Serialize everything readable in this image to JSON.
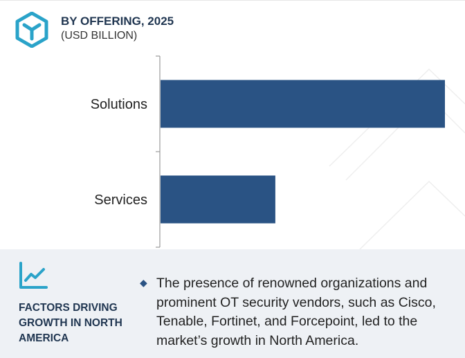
{
  "header": {
    "title": "BY OFFERING, 2025",
    "subtitle": "(USD BILLION)"
  },
  "chart_data": {
    "type": "bar",
    "orientation": "horizontal",
    "categories": [
      "Solutions",
      "Services"
    ],
    "values": [
      10.9,
      4.4
    ],
    "bar_color": "#2a5384",
    "axis_color": "#999999",
    "title": "BY OFFERING, 2025",
    "xlabel": "",
    "ylabel": "",
    "grid": false
  },
  "footer": {
    "heading": "FACTORS DRIVING GROWTH IN NORTH AMERICA",
    "bullets": [
      "The presence of renowned organizations and prominent OT security vendors, such as Cisco, Tenable, Fortinet, and Forcepoint, led to the market’s growth in North America."
    ],
    "accent_color": "#2aa3c9",
    "heading_color": "#1f3550",
    "background_color": "#eef1f5"
  },
  "icons": {
    "logo": "hexagon-cube-logo-icon",
    "trend": "line-chart-icon",
    "bullet": "diamond-bullet-icon"
  }
}
